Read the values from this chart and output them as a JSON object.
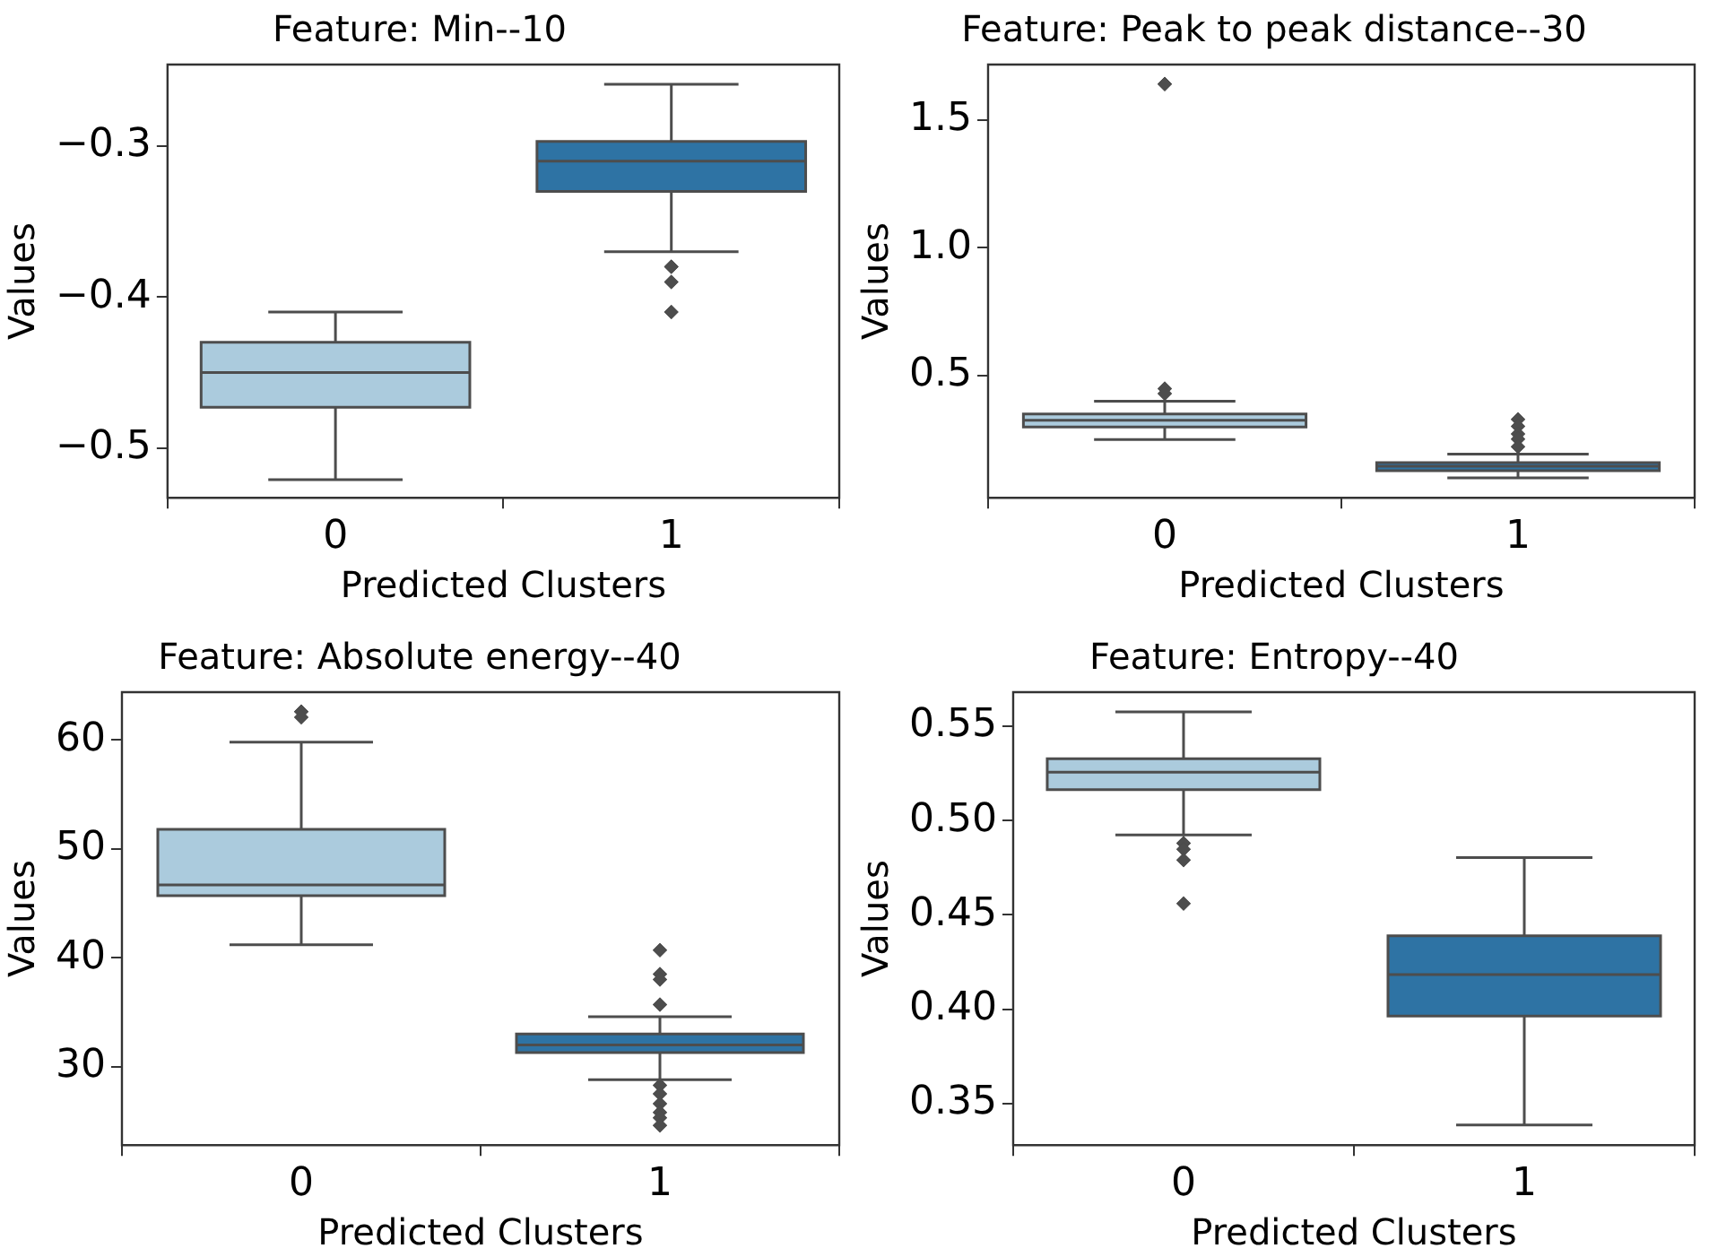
{
  "chart_data": [
    {
      "type": "box",
      "title": "Feature: Min--10",
      "xlabel": "Predicted Clusters",
      "ylabel": "Values",
      "categories": [
        "0",
        "1"
      ],
      "colors": [
        "#abcbdd",
        "#2e73a4"
      ],
      "marker": "diamond",
      "grid": false,
      "legend": false,
      "ylim": [
        -0.533,
        -0.246
      ],
      "yticks": [
        {
          "value": -0.5,
          "label": "−0.5"
        },
        {
          "value": -0.4,
          "label": "−0.4"
        },
        {
          "value": -0.3,
          "label": "−0.3"
        }
      ],
      "boxes": [
        {
          "low": -0.521,
          "q1": -0.473,
          "median": -0.45,
          "q3": -0.43,
          "high": -0.41
        },
        {
          "low": -0.37,
          "q1": -0.33,
          "median": -0.31,
          "q3": -0.297,
          "high": -0.259,
          "outliers": [
            -0.38,
            -0.39,
            -0.41
          ]
        }
      ]
    },
    {
      "type": "box",
      "title": "Feature: Peak to peak distance--30",
      "xlabel": "Predicted Clusters",
      "ylabel": "Values",
      "categories": [
        "0",
        "1"
      ],
      "colors": [
        "#abcbdd",
        "#2e73a4"
      ],
      "marker": "diamond",
      "grid": false,
      "legend": false,
      "ylim": [
        0.02,
        1.717
      ],
      "yticks": [
        0.5,
        {
          "value": 1.0,
          "label": "1.0"
        },
        1.5
      ],
      "boxes": [
        {
          "low": 0.248,
          "q1": 0.297,
          "median": 0.324,
          "q3": 0.348,
          "high": 0.398,
          "outliers": [
            1.641,
            0.447,
            0.428
          ]
        },
        {
          "low": 0.098,
          "q1": 0.126,
          "median": 0.144,
          "q3": 0.158,
          "high": 0.191,
          "outliers": [
            0.327,
            0.3,
            0.27,
            0.25,
            0.22
          ]
        }
      ]
    },
    {
      "type": "box",
      "title": "Feature: Absolute energy--40",
      "xlabel": "Predicted Clusters",
      "ylabel": "Values",
      "categories": [
        "0",
        "1"
      ],
      "colors": [
        "#abcbdd",
        "#2e73a4"
      ],
      "marker": "diamond",
      "grid": false,
      "legend": false,
      "ylim": [
        22.8,
        64.4
      ],
      "yticks": [
        30,
        40,
        50,
        60
      ],
      "boxes": [
        {
          "low": 41.2,
          "q1": 45.7,
          "median": 46.7,
          "q3": 51.8,
          "high": 59.8,
          "outliers": [
            62.6,
            62.1
          ]
        },
        {
          "low": 28.8,
          "q1": 31.3,
          "median": 32.0,
          "q3": 33.0,
          "high": 34.6,
          "outliers": [
            40.7,
            38.5,
            38.0,
            35.7,
            28.3,
            27.5,
            26.6,
            25.8,
            25.3,
            24.6
          ]
        }
      ]
    },
    {
      "type": "box",
      "title": "Feature: Entropy--40",
      "xlabel": "Predicted Clusters",
      "ylabel": "Values",
      "categories": [
        "0",
        "1"
      ],
      "colors": [
        "#abcbdd",
        "#2e73a4"
      ],
      "marker": "diamond",
      "grid": false,
      "legend": false,
      "ylim": [
        0.328,
        0.568
      ],
      "yticks": [
        0.35,
        {
          "value": 0.4,
          "label": "0.40"
        },
        0.45,
        {
          "value": 0.5,
          "label": "0.50"
        },
        0.55
      ],
      "boxes": [
        {
          "low": 0.4924,
          "q1": 0.5163,
          "median": 0.5256,
          "q3": 0.5327,
          "high": 0.5576,
          "outliers": [
            0.488,
            0.4847,
            0.479,
            0.456
          ]
        },
        {
          "low": 0.3387,
          "q1": 0.3964,
          "median": 0.4183,
          "q3": 0.4389,
          "high": 0.4803
        }
      ]
    }
  ]
}
